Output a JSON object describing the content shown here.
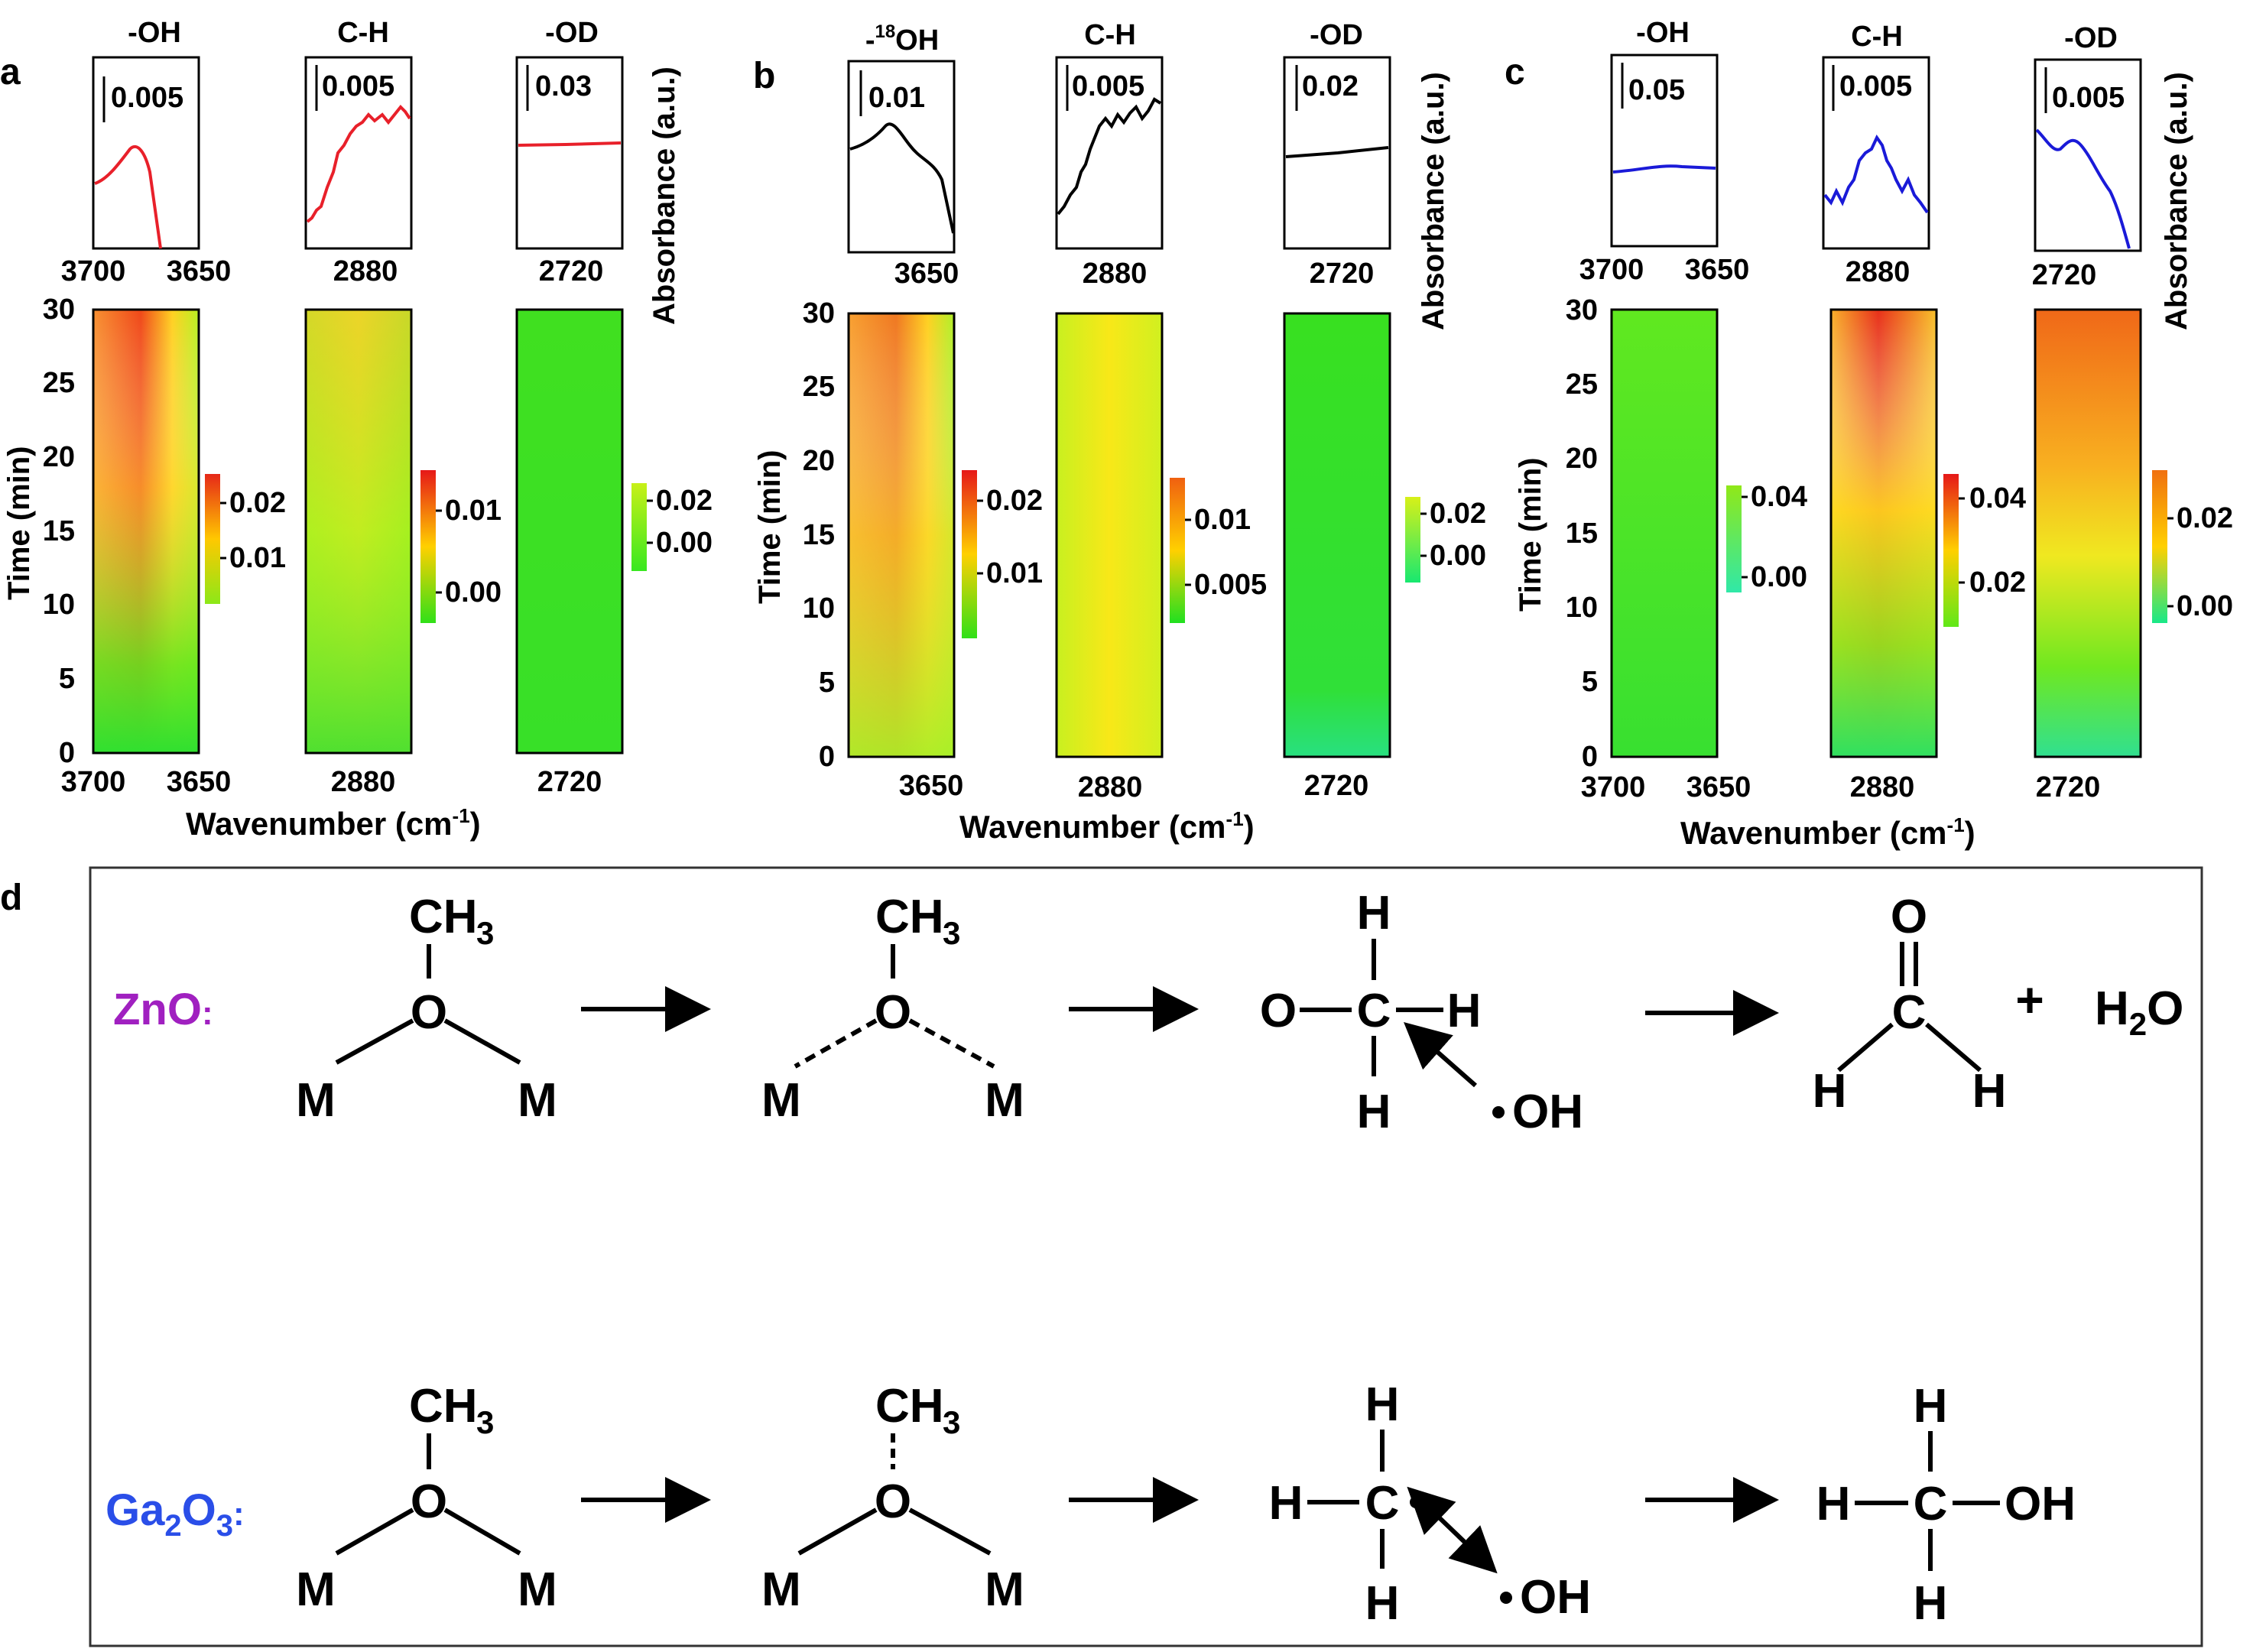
{
  "colors": {
    "red": "#e8202a",
    "black": "#000000",
    "blue": "#1a1ad8",
    "zno_label": "#a020c0",
    "ga2o3_label": "#2a4ee8"
  },
  "axes": {
    "time_label": "Time (min)",
    "wavenumber_label": "Wavenumber (cm",
    "wavenumber_sup": "-1",
    "wavenumber_close": ")",
    "absorbance_label": "Absorbance (a.u.)",
    "time_ticks": [
      "0",
      "5",
      "10",
      "15",
      "20",
      "25",
      "30"
    ]
  },
  "panels": [
    {
      "letter": "a",
      "line_color": "red",
      "sub": [
        {
          "title": "-OH",
          "scale": "0.005",
          "top_ticks": [
            "3700",
            "3650"
          ],
          "bottom_ticks": [
            "3700",
            "3650"
          ],
          "cb_ticks": [
            "0.02",
            "0.01"
          ],
          "cb_colors": [
            "#e62818",
            "#ffc800",
            "#8ce818"
          ]
        },
        {
          "title": "C-H",
          "scale": "0.005",
          "top_ticks": [
            "2880"
          ],
          "bottom_ticks": [
            "2880"
          ],
          "cb_ticks": [
            "0.01",
            "0.00"
          ],
          "cb_colors": [
            "#e61818",
            "#ffd000",
            "#30e018"
          ]
        },
        {
          "title": "-OD",
          "scale": "0.03",
          "top_ticks": [
            "2720"
          ],
          "bottom_ticks": [
            "2720"
          ],
          "cb_ticks": [
            "0.02",
            "0.00"
          ],
          "cb_colors": [
            "#c8f018",
            "#38e820"
          ]
        }
      ]
    },
    {
      "letter": "b",
      "line_color": "black",
      "sub": [
        {
          "title_pre": "-",
          "title_sup": "18",
          "title_post": "OH",
          "scale": "0.01",
          "top_ticks": [
            "3650"
          ],
          "bottom_ticks": [
            "3650"
          ],
          "cb_ticks": [
            "0.02",
            "0.01"
          ],
          "cb_colors": [
            "#e61818",
            "#ffd000",
            "#30e018"
          ]
        },
        {
          "title": "C-H",
          "scale": "0.005",
          "top_ticks": [
            "2880"
          ],
          "bottom_ticks": [
            "2880"
          ],
          "cb_ticks": [
            "0.01",
            "0.005"
          ],
          "cb_colors": [
            "#f06010",
            "#ffd000",
            "#20e020"
          ]
        },
        {
          "title": "-OD",
          "scale": "0.02",
          "top_ticks": [
            "2720"
          ],
          "bottom_ticks": [
            "2720"
          ],
          "cb_ticks": [
            "0.02",
            "0.00"
          ],
          "cb_colors": [
            "#d8f018",
            "#18e870"
          ]
        }
      ]
    },
    {
      "letter": "c",
      "line_color": "blue",
      "sub": [
        {
          "title": "-OH",
          "scale": "0.05",
          "top_ticks": [
            "3700",
            "3650"
          ],
          "bottom_ticks": [
            "3700",
            "3650"
          ],
          "cb_ticks": [
            "0.04",
            "0.00"
          ],
          "cb_colors": [
            "#90e818",
            "#30e8a8"
          ]
        },
        {
          "title": "C-H",
          "scale": "0.005",
          "top_ticks": [
            "2880"
          ],
          "bottom_ticks": [
            "2880"
          ],
          "cb_ticks": [
            "0.04",
            "0.02"
          ],
          "cb_colors": [
            "#e61818",
            "#ffd000",
            "#60e818"
          ]
        },
        {
          "title": "-OD",
          "scale": "0.005",
          "top_ticks": [
            "2720"
          ],
          "bottom_ticks": [
            "2720"
          ],
          "cb_ticks": [
            "0.02",
            "0.00"
          ],
          "cb_colors": [
            "#f07010",
            "#ffd000",
            "#18e888"
          ]
        }
      ]
    }
  ],
  "panel_d": {
    "letter": "d",
    "zno": {
      "label": "ZnO",
      "label_suffix": ":",
      "struct1": {
        "top": "CH",
        "top_sub": "3",
        "center": "O",
        "left": "M",
        "right": "M"
      },
      "struct2": {
        "top": "CH",
        "top_sub": "3",
        "center": "O",
        "left": "M",
        "right": "M"
      },
      "struct3": {
        "top": "H",
        "bottom": "H",
        "left": "O",
        "center": "C",
        "right": "H",
        "radical": "OH"
      },
      "struct4": {
        "top": "O",
        "center": "C",
        "left": "H",
        "right": "H"
      },
      "plus": "+",
      "water": "H",
      "water_sub": "2",
      "water_post": "O"
    },
    "ga2o3": {
      "label": "Ga",
      "label_sub1": "2",
      "label_mid": "O",
      "label_sub2": "3",
      "label_suffix": ":",
      "struct1": {
        "top": "CH",
        "top_sub": "3",
        "center": "O",
        "left": "M",
        "right": "M"
      },
      "struct2": {
        "top": "CH",
        "top_sub": "3",
        "center": "O",
        "left": "M",
        "right": "M"
      },
      "struct3": {
        "top": "H",
        "bottom": "H",
        "left": "H",
        "center": "C",
        "radical": "OH"
      },
      "struct4": {
        "top": "H",
        "bottom": "H",
        "left": "H",
        "center": "C",
        "right": "OH"
      }
    }
  }
}
